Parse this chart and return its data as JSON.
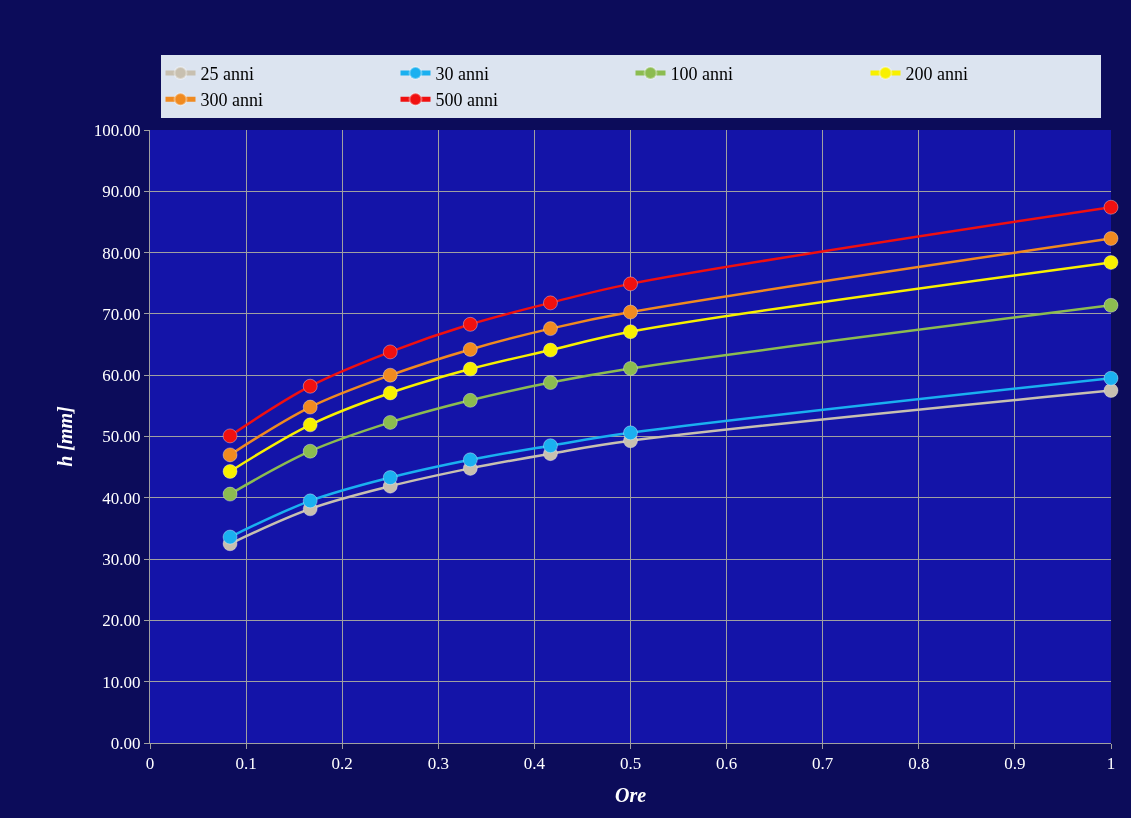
{
  "chart_data": {
    "type": "line",
    "xlabel": "Ore",
    "ylabel": "h [mm]",
    "x": [
      0.0833,
      0.1667,
      0.25,
      0.3333,
      0.4167,
      0.5,
      1
    ],
    "series": [
      {
        "name": "25 anni",
        "color": "#c8c0b0",
        "values": [
          32.5,
          38.2,
          41.9,
          44.8,
          47.2,
          49.3,
          57.5
        ]
      },
      {
        "name": "30 anni",
        "color": "#1ab0f0",
        "values": [
          33.6,
          39.5,
          43.3,
          46.2,
          48.5,
          50.6,
          59.5
        ]
      },
      {
        "name": "100 anni",
        "color": "#8cbc50",
        "values": [
          40.6,
          47.6,
          52.3,
          55.9,
          58.8,
          61.1,
          71.4
        ]
      },
      {
        "name": "200 anni",
        "color": "#f8f000",
        "values": [
          44.3,
          51.9,
          57.1,
          61.0,
          64.1,
          67.1,
          78.4
        ]
      },
      {
        "name": "300 anni",
        "color": "#f08a20",
        "values": [
          47.0,
          54.8,
          60.0,
          64.2,
          67.6,
          70.3,
          82.3
        ]
      },
      {
        "name": "500 anni",
        "color": "#f01010",
        "values": [
          50.1,
          58.2,
          63.8,
          68.3,
          71.8,
          74.9,
          87.4
        ]
      }
    ],
    "xlim": [
      0,
      1
    ],
    "xticks": [
      0,
      0.1,
      0.2,
      0.3,
      0.4,
      0.5,
      0.6,
      0.7,
      0.8,
      0.9,
      1
    ],
    "ylim": [
      0,
      100
    ],
    "yticks": [
      {
        "value": 0,
        "label": "0.00"
      },
      {
        "value": 10,
        "label": "10.00"
      },
      {
        "value": 20,
        "label": "20.00"
      },
      {
        "value": 30,
        "label": "30.00"
      },
      {
        "value": 40,
        "label": "40.00"
      },
      {
        "value": 50,
        "label": "50.00"
      },
      {
        "value": 60,
        "label": "60.00"
      },
      {
        "value": 70,
        "label": "70.00"
      },
      {
        "value": 80,
        "label": "80.00"
      },
      {
        "value": 90,
        "label": "90.00"
      },
      {
        "value": 100,
        "label": "100.00"
      }
    ],
    "grid": true,
    "legend": "top",
    "marker": "circle",
    "line_style": "solid"
  }
}
